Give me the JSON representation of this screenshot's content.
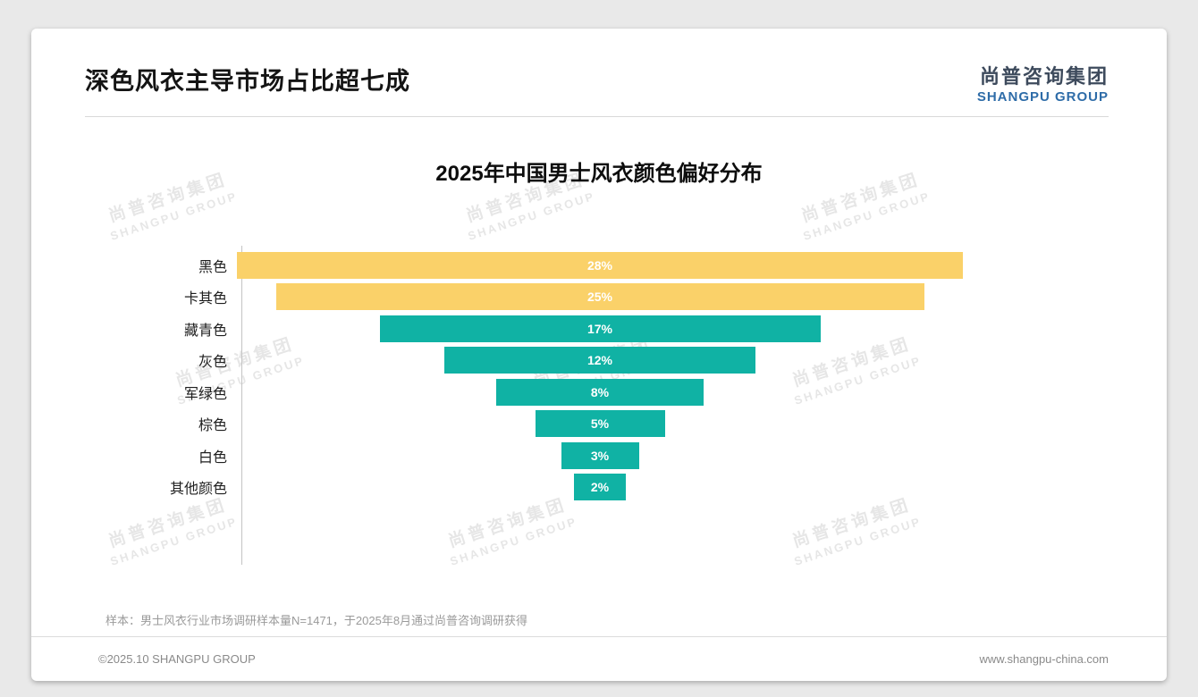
{
  "header": {
    "title": "深色风衣主导市场占比超七成",
    "logo_cn": "尚普咨询集团",
    "logo_en": "SHANGPU GROUP"
  },
  "chart_data": {
    "type": "bar",
    "variant": "horizontal-centered-funnel",
    "title": "2025年中国男士风衣颜色偏好分布",
    "categories": [
      "黑色",
      "卡其色",
      "藏青色",
      "灰色",
      "军绿色",
      "棕色",
      "白色",
      "其他颜色"
    ],
    "values": [
      28,
      25,
      17,
      12,
      8,
      5,
      3,
      2
    ],
    "value_labels": [
      "28%",
      "25%",
      "17%",
      "12%",
      "8%",
      "5%",
      "3%",
      "2%"
    ],
    "unit": "%",
    "xlim": [
      0,
      28
    ],
    "grid": false,
    "legend": false,
    "bar_colors": [
      "#FAD169",
      "#FAD169",
      "#10B2A4",
      "#10B2A4",
      "#10B2A4",
      "#10B2A4",
      "#10B2A4",
      "#10B2A4"
    ],
    "value_label_color": "#ffffff"
  },
  "footnote": "样本：男士风衣行业市场调研样本量N=1471，于2025年8月通过尚普咨询调研获得",
  "footer": {
    "copyright": "©2025.10 SHANGPU GROUP",
    "website": "www.shangpu-china.com"
  },
  "watermark": {
    "line1": "尚普咨询集团",
    "line2": "SHANGPU GROUP"
  },
  "colors": {
    "accent_yellow": "#FAD169",
    "accent_teal": "#10B2A4",
    "logo_blue": "#2E6CA8"
  }
}
